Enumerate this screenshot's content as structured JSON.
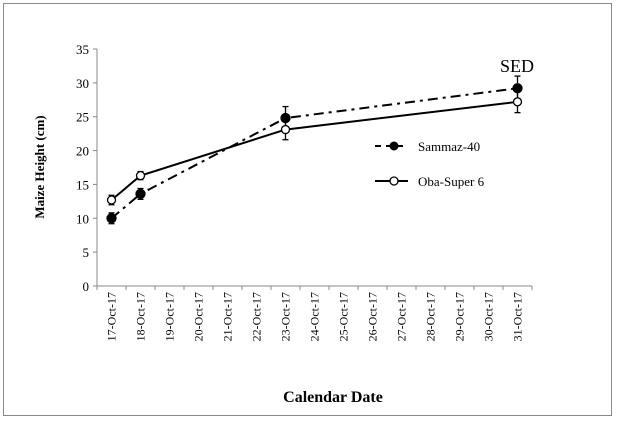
{
  "chart_data": {
    "type": "line",
    "title": "",
    "xlabel": "Calendar Date",
    "ylabel": "Maize Height (cm)",
    "ylim": [
      0,
      35
    ],
    "yticks": [
      0,
      5,
      10,
      15,
      20,
      25,
      30,
      35
    ],
    "categories": [
      "17-Oct-17",
      "18-Oct-17",
      "19-Oct-17",
      "20-Oct-17",
      "21-Oct-17",
      "22-Oct-17",
      "23-Oct-17",
      "24-Oct-17",
      "25-Oct-17",
      "26-Oct-17",
      "27-Oct-17",
      "28-Oct-17",
      "29-Oct-17",
      "30-Oct-17",
      "31-Oct-17"
    ],
    "grid": false,
    "legend": "right-middle",
    "annotation": "SED",
    "series": [
      {
        "name": "Sammaz-40",
        "marker": "filled-circle",
        "line": "dash-dot",
        "color": "#000000",
        "points": [
          {
            "x": "17-Oct-17",
            "y": 10.0,
            "err": 0.8
          },
          {
            "x": "18-Oct-17",
            "y": 13.6,
            "err": 0.8
          },
          {
            "x": "23-Oct-17",
            "y": 24.8,
            "err": 1.7
          },
          {
            "x": "31-Oct-17",
            "y": 29.2,
            "err": 1.8
          }
        ]
      },
      {
        "name": "Oba-Super 6",
        "marker": "open-circle",
        "line": "solid",
        "color": "#000000",
        "points": [
          {
            "x": "17-Oct-17",
            "y": 12.7,
            "err": 0.7
          },
          {
            "x": "18-Oct-17",
            "y": 16.3,
            "err": 0.6
          },
          {
            "x": "23-Oct-17",
            "y": 23.1,
            "err": 1.5
          },
          {
            "x": "31-Oct-17",
            "y": 27.2,
            "err": 1.6
          }
        ]
      }
    ]
  }
}
